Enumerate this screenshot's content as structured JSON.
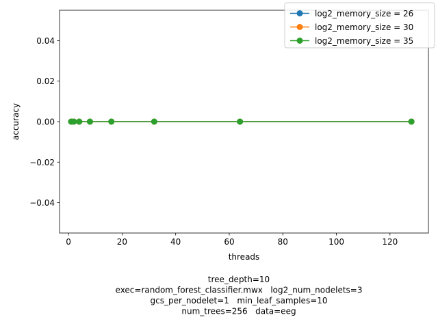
{
  "chart_data": {
    "type": "line",
    "title": "",
    "xlabel": "threads",
    "ylabel": "accuracy",
    "xlim": [
      -3.35,
      134.35
    ],
    "ylim": [
      -0.055,
      0.055
    ],
    "xticks": [
      0,
      20,
      40,
      60,
      80,
      100,
      120
    ],
    "xtick_labels": [
      "0",
      "20",
      "40",
      "60",
      "80",
      "100",
      "120"
    ],
    "yticks": [
      -0.04,
      -0.02,
      0.0,
      0.02,
      0.04
    ],
    "ytick_labels": [
      "−0.04",
      "−0.02",
      "0.00",
      "0.02",
      "0.04"
    ],
    "grid": false,
    "legend_position": "top-right",
    "x": [
      1,
      2,
      4,
      8,
      16,
      32,
      64,
      128
    ],
    "series": [
      {
        "name": "log2_memory_size = 26",
        "color": "#1f77b4",
        "values": [
          0,
          0,
          0,
          0,
          0,
          0,
          0,
          0
        ]
      },
      {
        "name": "log2_memory_size = 30",
        "color": "#ff7f0e",
        "values": [
          0,
          0,
          0,
          0,
          0,
          0,
          0,
          0
        ]
      },
      {
        "name": "log2_memory_size = 35",
        "color": "#2ca02c",
        "values": [
          0,
          0,
          0,
          0,
          0,
          0,
          0,
          0
        ]
      }
    ],
    "caption": [
      "tree_depth=10",
      "exec=random_forest_classifier.mwx   log2_num_nodelets=3",
      "gcs_per_nodelet=1   min_leaf_samples=10",
      "num_trees=256   data=eeg"
    ]
  }
}
